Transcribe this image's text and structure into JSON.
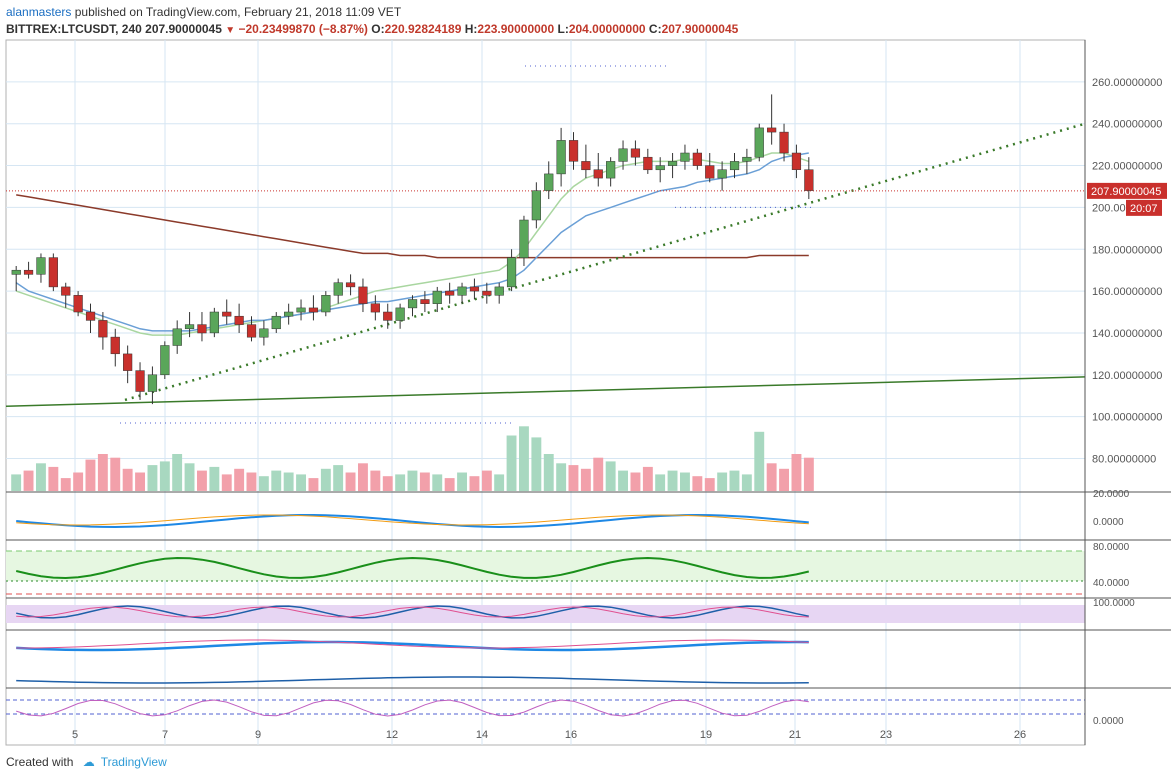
{
  "header": {
    "author": "alanmasters",
    "published": "published on TradingView.com, February 21, 2018 11:09 VET",
    "symbol": "BITTREX:LTCUSDT, 240",
    "last": "207.90000045",
    "down_glyph": "▼",
    "change": "−20.23499870 (−8.87%)",
    "o_label": "O:",
    "o_value": "220.92824189",
    "h_label": "H:",
    "h_value": "223.90000000",
    "l_label": "L:",
    "l_value": "204.00000000",
    "c_label": "C:",
    "c_value": "207.90000045"
  },
  "footer": {
    "created_with": "Created with",
    "brand": "TradingView"
  },
  "colors": {
    "up": "#5aa65a",
    "down": "#c9302c",
    "vol_up": "#a8d8c0",
    "vol_down": "#f2a0aa",
    "ma_fast": "#6a9fd6",
    "ma_mid": "#a9d6a0",
    "ma_slow": "#8b3a2a",
    "trendline": "#3a7a2a",
    "last_price_bg": "#c9302c",
    "timer_bg": "#c9302c"
  },
  "chart_data": {
    "type": "candlestick",
    "x_labels": [
      "5",
      "7",
      "9",
      "12",
      "14",
      "16",
      "19",
      "21",
      "23",
      "26"
    ],
    "y_labels": [
      "260.00000000",
      "240.00000000",
      "220.00000000",
      "200.00000000",
      "180.00000000",
      "160.00000000",
      "140.00000000",
      "120.00000000",
      "100.00000000",
      "80.00000000"
    ],
    "y_ticks": [
      260,
      240,
      220,
      200,
      180,
      160,
      140,
      120,
      100,
      80
    ],
    "ylim": [
      64,
      280
    ],
    "last_price_tag": "207.90000045",
    "last_price": 207.9,
    "timer_tag": "20:07",
    "candles": [
      [
        168,
        172,
        160,
        170
      ],
      [
        170,
        174,
        166,
        168
      ],
      [
        168,
        178,
        164,
        176
      ],
      [
        176,
        178,
        160,
        162
      ],
      [
        162,
        164,
        152,
        158
      ],
      [
        158,
        160,
        148,
        150
      ],
      [
        150,
        154,
        140,
        146
      ],
      [
        146,
        150,
        132,
        138
      ],
      [
        138,
        142,
        124,
        130
      ],
      [
        130,
        134,
        116,
        122
      ],
      [
        122,
        126,
        108,
        112
      ],
      [
        112,
        124,
        106,
        120
      ],
      [
        120,
        136,
        118,
        134
      ],
      [
        134,
        146,
        130,
        142
      ],
      [
        142,
        150,
        138,
        144
      ],
      [
        144,
        150,
        136,
        140
      ],
      [
        140,
        152,
        138,
        150
      ],
      [
        150,
        156,
        144,
        148
      ],
      [
        148,
        154,
        140,
        144
      ],
      [
        144,
        148,
        136,
        138
      ],
      [
        138,
        146,
        134,
        142
      ],
      [
        142,
        150,
        140,
        148
      ],
      [
        148,
        154,
        144,
        150
      ],
      [
        150,
        156,
        146,
        152
      ],
      [
        152,
        158,
        146,
        150
      ],
      [
        150,
        160,
        148,
        158
      ],
      [
        158,
        166,
        154,
        164
      ],
      [
        164,
        168,
        158,
        162
      ],
      [
        162,
        166,
        150,
        154
      ],
      [
        154,
        158,
        146,
        150
      ],
      [
        150,
        154,
        142,
        146
      ],
      [
        146,
        154,
        142,
        152
      ],
      [
        152,
        158,
        148,
        156
      ],
      [
        156,
        160,
        150,
        154
      ],
      [
        154,
        162,
        150,
        160
      ],
      [
        160,
        164,
        154,
        158
      ],
      [
        158,
        164,
        154,
        162
      ],
      [
        162,
        166,
        156,
        160
      ],
      [
        160,
        164,
        154,
        158
      ],
      [
        158,
        164,
        154,
        162
      ],
      [
        162,
        180,
        160,
        176
      ],
      [
        176,
        196,
        172,
        194
      ],
      [
        194,
        212,
        190,
        208
      ],
      [
        208,
        222,
        204,
        216
      ],
      [
        216,
        238,
        210,
        232
      ],
      [
        232,
        236,
        218,
        222
      ],
      [
        222,
        230,
        214,
        218
      ],
      [
        218,
        226,
        210,
        214
      ],
      [
        214,
        224,
        210,
        222
      ],
      [
        222,
        232,
        218,
        228
      ],
      [
        228,
        232,
        220,
        224
      ],
      [
        224,
        228,
        216,
        218
      ],
      [
        218,
        224,
        212,
        220
      ],
      [
        220,
        226,
        214,
        222
      ],
      [
        222,
        230,
        218,
        226
      ],
      [
        226,
        228,
        218,
        220
      ],
      [
        220,
        226,
        212,
        214
      ],
      [
        214,
        222,
        208,
        218
      ],
      [
        218,
        226,
        214,
        222
      ],
      [
        222,
        228,
        216,
        224
      ],
      [
        224,
        240,
        222,
        238
      ],
      [
        238,
        254,
        230,
        236
      ],
      [
        236,
        240,
        222,
        226
      ],
      [
        226,
        230,
        214,
        218
      ],
      [
        218,
        224,
        204,
        208
      ]
    ],
    "volumes": [
      18,
      22,
      30,
      26,
      14,
      20,
      34,
      40,
      36,
      24,
      20,
      28,
      32,
      40,
      30,
      22,
      26,
      18,
      24,
      20,
      16,
      22,
      20,
      18,
      14,
      24,
      28,
      20,
      30,
      22,
      16,
      18,
      22,
      20,
      18,
      14,
      20,
      16,
      22,
      18,
      60,
      70,
      58,
      40,
      30,
      28,
      24,
      36,
      32,
      22,
      20,
      26,
      18,
      22,
      20,
      16,
      14,
      20,
      22,
      18,
      64,
      30,
      24,
      40,
      36
    ],
    "volume_ylim": [
      0,
      120
    ],
    "ma_fast": [
      164,
      160,
      158,
      156,
      154,
      152,
      150,
      148,
      146,
      144,
      142,
      141,
      141,
      141,
      141,
      142,
      143,
      144,
      145,
      146,
      146,
      147,
      148,
      149,
      150,
      151,
      152,
      153,
      154,
      155,
      155,
      156,
      157,
      158,
      159,
      160,
      161,
      162,
      163,
      164,
      166,
      170,
      176,
      182,
      188,
      192,
      196,
      198,
      200,
      202,
      204,
      206,
      208,
      209,
      210,
      212,
      213,
      214,
      215,
      216,
      218,
      222,
      224,
      225,
      226
    ],
    "ma_mid": [
      160,
      158,
      156,
      154,
      152,
      150,
      148,
      146,
      144,
      142,
      140,
      139,
      139,
      139,
      140,
      141,
      142,
      143,
      144,
      145,
      146,
      147,
      148,
      149,
      150,
      152,
      154,
      156,
      158,
      160,
      161,
      162,
      163,
      164,
      165,
      166,
      167,
      168,
      169,
      170,
      174,
      180,
      188,
      196,
      204,
      210,
      214,
      216,
      218,
      220,
      221,
      222,
      222,
      222,
      223,
      223,
      222,
      221,
      221,
      222,
      224,
      226,
      226,
      224,
      222
    ],
    "ma_slow": [
      206,
      205,
      204,
      203,
      202,
      201,
      200,
      199,
      198,
      197,
      196,
      195,
      194,
      193,
      192,
      191,
      190,
      189,
      188,
      187,
      186,
      185,
      184,
      183,
      182,
      181,
      180,
      179,
      178,
      178,
      178,
      177,
      177,
      177,
      176,
      176,
      176,
      176,
      176,
      176,
      176,
      176,
      176,
      176,
      176,
      176,
      176,
      176,
      176,
      176,
      176,
      176,
      176,
      176,
      176,
      176,
      176,
      176,
      176,
      176,
      177,
      177,
      177,
      177,
      177
    ],
    "lower_panes": {
      "macd_label": "0.0000",
      "macd_top_label": "20.0000",
      "rsi_labels": [
        "80.0000",
        "40.0000"
      ],
      "stoch_label": "100.0000",
      "last_label": "0.0000"
    }
  }
}
